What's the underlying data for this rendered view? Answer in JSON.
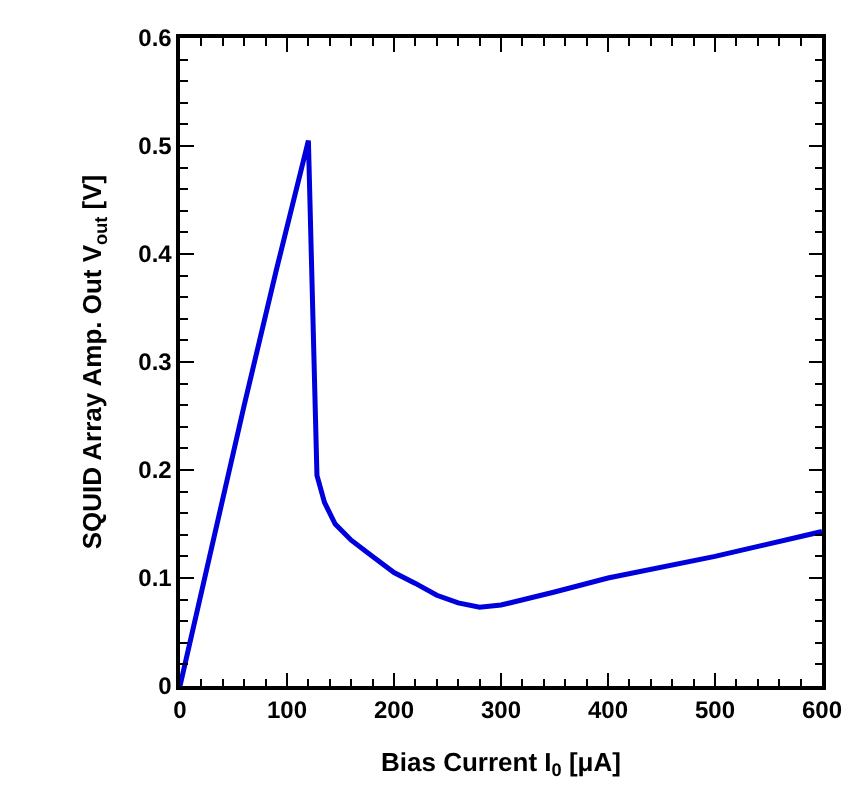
{
  "chart_data": {
    "type": "line",
    "xlabel": "Bias Current I$_{0}$ [μA]",
    "ylabel": "SQUID Array Amp. Out V$_{out}$ [V]",
    "x": [
      0,
      60,
      90,
      120,
      128,
      135,
      145,
      160,
      180,
      200,
      220,
      240,
      260,
      280,
      300,
      350,
      400,
      500,
      600
    ],
    "series": [
      {
        "color": "#0000dd",
        "values": [
          0,
          0.26,
          0.385,
          0.505,
          0.195,
          0.17,
          0.15,
          0.135,
          0.12,
          0.105,
          0.095,
          0.084,
          0.077,
          0.073,
          0.075,
          0.087,
          0.1,
          0.12,
          0.143
        ]
      }
    ],
    "xlim": [
      0,
      600
    ],
    "xticks": [
      0,
      100,
      200,
      300,
      400,
      500,
      600
    ],
    "ylim": [
      0,
      0.6
    ],
    "yticks": [
      0,
      0.1,
      0.2,
      0.3,
      0.4,
      0.5,
      0.6
    ],
    "marker": "none",
    "line_style": "solid"
  }
}
